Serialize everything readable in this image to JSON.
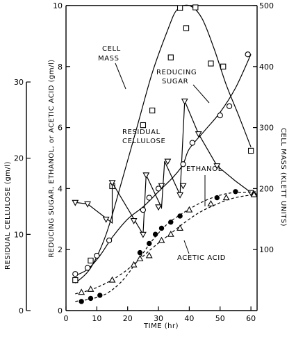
{
  "chart_data": {
    "type": "line",
    "title": "",
    "xlabel": "TIME (hr)",
    "xlim": [
      0,
      62
    ],
    "x_ticks": [
      0,
      10,
      20,
      30,
      40,
      50,
      60
    ],
    "axes": {
      "sugar": {
        "label": "REDUCING SUGAR, ETHANOL, or ACETIC ACID (gm/l)",
        "range": [
          0,
          10
        ],
        "ticks": [
          0,
          2,
          4,
          6,
          8,
          10
        ]
      },
      "cellulose": {
        "label": "RESIDUAL CELLULOSE (gm/l)",
        "range": [
          0,
          30
        ],
        "ticks": [
          0,
          10,
          20,
          30
        ]
      },
      "cellmass": {
        "label": "CELL MASS (KLETT UNITS)",
        "range": [
          0,
          500
        ],
        "ticks": [
          100,
          200,
          300,
          400,
          500
        ]
      }
    },
    "series": [
      {
        "name": "CELL MASS",
        "axis": "cellmass",
        "marker": "square",
        "points": [
          [
            3,
            50
          ],
          [
            8,
            82
          ],
          [
            15,
            204
          ],
          [
            25,
            304
          ],
          [
            28,
            328
          ],
          [
            34,
            415
          ],
          [
            37,
            496
          ],
          [
            39,
            463
          ],
          [
            42,
            497
          ],
          [
            47,
            405
          ],
          [
            51,
            400
          ],
          [
            60,
            262
          ]
        ],
        "curve": [
          [
            3,
            45
          ],
          [
            8,
            70
          ],
          [
            13,
            125
          ],
          [
            18,
            210
          ],
          [
            23,
            300
          ],
          [
            28,
            390
          ],
          [
            33,
            460
          ],
          [
            36,
            493
          ],
          [
            40,
            500
          ],
          [
            44,
            480
          ],
          [
            48,
            430
          ],
          [
            52,
            370
          ],
          [
            56,
            320
          ],
          [
            60,
            268
          ]
        ]
      },
      {
        "name": "RESIDUAL CELLULOSE",
        "axis": "cellulose",
        "marker": "triangle-down",
        "points": [
          [
            3,
            14.2
          ],
          [
            7,
            14.0
          ],
          [
            13,
            12.0
          ],
          [
            15,
            16.8
          ],
          [
            22,
            11.8
          ],
          [
            25,
            10.0
          ],
          [
            26,
            17.8
          ],
          [
            30,
            13.6
          ],
          [
            31,
            16.4
          ],
          [
            33,
            19.6
          ],
          [
            37,
            15.2
          ],
          [
            38,
            16.4
          ],
          [
            38.5,
            27.5
          ],
          [
            43,
            23.2
          ],
          [
            49,
            19.0
          ],
          [
            60,
            15.5
          ]
        ],
        "path": [
          [
            3,
            14.2
          ],
          [
            7,
            14.0
          ],
          [
            15,
            11.5
          ],
          [
            15,
            16.8
          ],
          [
            25,
            10.0
          ],
          [
            26,
            17.8
          ],
          [
            31,
            13.5
          ],
          [
            32,
            19.6
          ],
          [
            37,
            15.2
          ],
          [
            38.5,
            27.5
          ],
          [
            43,
            23.2
          ],
          [
            49,
            19.0
          ],
          [
            55,
            17.0
          ],
          [
            60,
            15.5
          ]
        ]
      },
      {
        "name": "REDUCING SUGAR",
        "axis": "sugar",
        "marker": "circle",
        "points": [
          [
            3,
            1.2
          ],
          [
            7,
            1.4
          ],
          [
            10,
            1.8
          ],
          [
            14,
            2.3
          ],
          [
            25,
            3.3
          ],
          [
            27,
            3.7
          ],
          [
            30,
            4.0
          ],
          [
            38,
            4.8
          ],
          [
            41,
            5.5
          ],
          [
            50,
            6.4
          ],
          [
            53,
            6.7
          ],
          [
            59,
            8.4
          ]
        ],
        "curve": [
          [
            3,
            1.15
          ],
          [
            7,
            1.35
          ],
          [
            11,
            1.8
          ],
          [
            15,
            2.4
          ],
          [
            20,
            3.0
          ],
          [
            25,
            3.4
          ],
          [
            30,
            3.9
          ],
          [
            35,
            4.4
          ],
          [
            38,
            4.8
          ],
          [
            40,
            5.3
          ],
          [
            45,
            5.9
          ],
          [
            50,
            6.5
          ],
          [
            55,
            7.3
          ],
          [
            60,
            8.4
          ]
        ]
      },
      {
        "name": "ETHANOL",
        "axis": "sugar",
        "marker": "filled-circle",
        "points": [
          [
            5,
            0.3
          ],
          [
            8,
            0.4
          ],
          [
            11,
            0.5
          ],
          [
            24,
            1.9
          ],
          [
            27,
            2.2
          ],
          [
            29,
            2.5
          ],
          [
            31,
            2.7
          ],
          [
            34,
            2.9
          ],
          [
            37,
            3.1
          ],
          [
            49,
            3.7
          ],
          [
            55,
            3.9
          ],
          [
            61,
            3.8
          ]
        ],
        "curve": [
          [
            3,
            0.3
          ],
          [
            8,
            0.38
          ],
          [
            13,
            0.55
          ],
          [
            18,
            0.95
          ],
          [
            23,
            1.6
          ],
          [
            28,
            2.3
          ],
          [
            33,
            2.85
          ],
          [
            38,
            3.2
          ],
          [
            43,
            3.5
          ],
          [
            48,
            3.72
          ],
          [
            53,
            3.85
          ],
          [
            58,
            3.88
          ],
          [
            62,
            3.9
          ]
        ]
      },
      {
        "name": "ACETIC ACID",
        "axis": "sugar",
        "marker": "triangle",
        "points": [
          [
            5,
            0.6
          ],
          [
            8,
            0.7
          ],
          [
            15,
            1.0
          ],
          [
            22,
            1.5
          ],
          [
            24,
            1.7
          ],
          [
            27,
            1.8
          ],
          [
            31,
            2.3
          ],
          [
            34,
            2.5
          ],
          [
            37,
            2.7
          ],
          [
            40,
            3.3
          ],
          [
            47,
            3.5
          ],
          [
            52,
            3.7
          ],
          [
            61,
            3.8
          ]
        ],
        "curve": [
          [
            3,
            0.55
          ],
          [
            8,
            0.68
          ],
          [
            13,
            0.9
          ],
          [
            18,
            1.2
          ],
          [
            23,
            1.6
          ],
          [
            28,
            2.05
          ],
          [
            33,
            2.45
          ],
          [
            38,
            2.85
          ],
          [
            43,
            3.2
          ],
          [
            48,
            3.45
          ],
          [
            53,
            3.65
          ],
          [
            58,
            3.76
          ],
          [
            62,
            3.8
          ]
        ]
      }
    ],
    "labels": {
      "cell_mass": [
        "CELL",
        "MASS"
      ],
      "reducing_sugar": [
        "REDUCING",
        "SUGAR"
      ],
      "residual_cellulose": [
        "RESIDUAL",
        "CELLULOSE"
      ],
      "ethanol": "ETHANOL",
      "acetic_acid": "ACETIC  ACID"
    }
  }
}
